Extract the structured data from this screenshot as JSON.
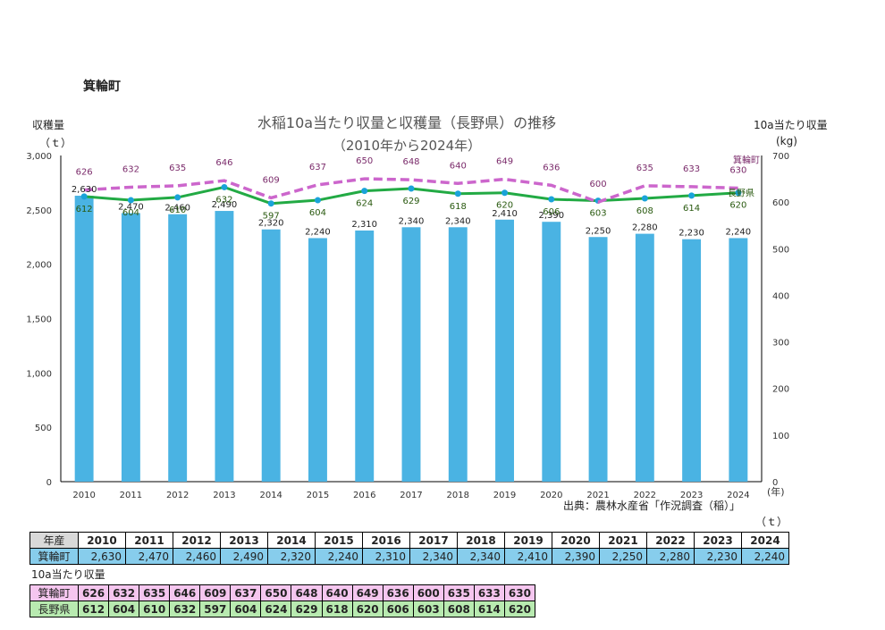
{
  "heading": "箕輪町",
  "chart_data": {
    "type": "bar+line",
    "title": "水稲10a当たり収量と収穫量（長野県）の推移",
    "subtitle": "（2010年から2024年）",
    "y_left_label": "収穫量",
    "y_left_unit": "（ｔ）",
    "y_right_label": "10a当たり収量",
    "y_right_unit": "(kg)",
    "x_unit": "(年)",
    "ylim_left": [
      0,
      3000
    ],
    "yticks_left": [
      "0",
      "500",
      "1,000",
      "1,500",
      "2,000",
      "2,500",
      "3,000"
    ],
    "ylim_right": [
      0,
      700
    ],
    "yticks_right": [
      "0",
      "100",
      "200",
      "300",
      "400",
      "500",
      "600",
      "700"
    ],
    "categories": [
      "2010",
      "2011",
      "2012",
      "2013",
      "2014",
      "2015",
      "2016",
      "2017",
      "2018",
      "2019",
      "2020",
      "2021",
      "2022",
      "2023",
      "2024"
    ],
    "bars": {
      "name": "箕輪町",
      "values": [
        2630,
        2470,
        2460,
        2490,
        2320,
        2240,
        2310,
        2340,
        2340,
        2410,
        2390,
        2250,
        2280,
        2230,
        2240
      ],
      "labels": [
        "2,630",
        "2,470",
        "2,460",
        "2,490",
        "2,320",
        "2,240",
        "2,310",
        "2,340",
        "2,340",
        "2,410",
        "2,390",
        "2,250",
        "2,280",
        "2,230",
        "2,240"
      ],
      "color": "#4ab3e3"
    },
    "lines": [
      {
        "name": "箕輪町",
        "values": [
          626,
          632,
          635,
          646,
          609,
          637,
          650,
          648,
          640,
          649,
          636,
          600,
          635,
          633,
          630
        ],
        "color": "#cc66cc",
        "label_color": "#7a2a6a",
        "dashed": true
      },
      {
        "name": "長野県",
        "values": [
          612,
          604,
          610,
          632,
          597,
          604,
          624,
          629,
          618,
          620,
          606,
          603,
          608,
          614,
          620
        ],
        "color": "#22aa44",
        "label_color": "#2a5a10",
        "dashed": false
      }
    ],
    "grid": false
  },
  "source": "出典：農林水産省「作況調査（稲）」",
  "table_unit": "（ｔ）",
  "yield_table": {
    "year_header": "年産",
    "years": [
      "2010",
      "2011",
      "2012",
      "2013",
      "2014",
      "2015",
      "2016",
      "2017",
      "2018",
      "2019",
      "2020",
      "2021",
      "2022",
      "2023",
      "2024"
    ],
    "town_label": "箕輪町",
    "town_values": [
      "2,630",
      "2,470",
      "2,460",
      "2,490",
      "2,320",
      "2,240",
      "2,310",
      "2,340",
      "2,340",
      "2,410",
      "2,390",
      "2,250",
      "2,280",
      "2,230",
      "2,240"
    ]
  },
  "per10a_label": "10a当たり収量",
  "per10a_table": {
    "town_label": "箕輪町",
    "town_values": [
      "626",
      "632",
      "635",
      "646",
      "609",
      "637",
      "650",
      "648",
      "640",
      "649",
      "636",
      "600",
      "635",
      "633",
      "630"
    ],
    "pref_label": "長野県",
    "pref_values": [
      "612",
      "604",
      "610",
      "632",
      "597",
      "604",
      "624",
      "629",
      "618",
      "620",
      "606",
      "603",
      "608",
      "614",
      "620"
    ]
  }
}
